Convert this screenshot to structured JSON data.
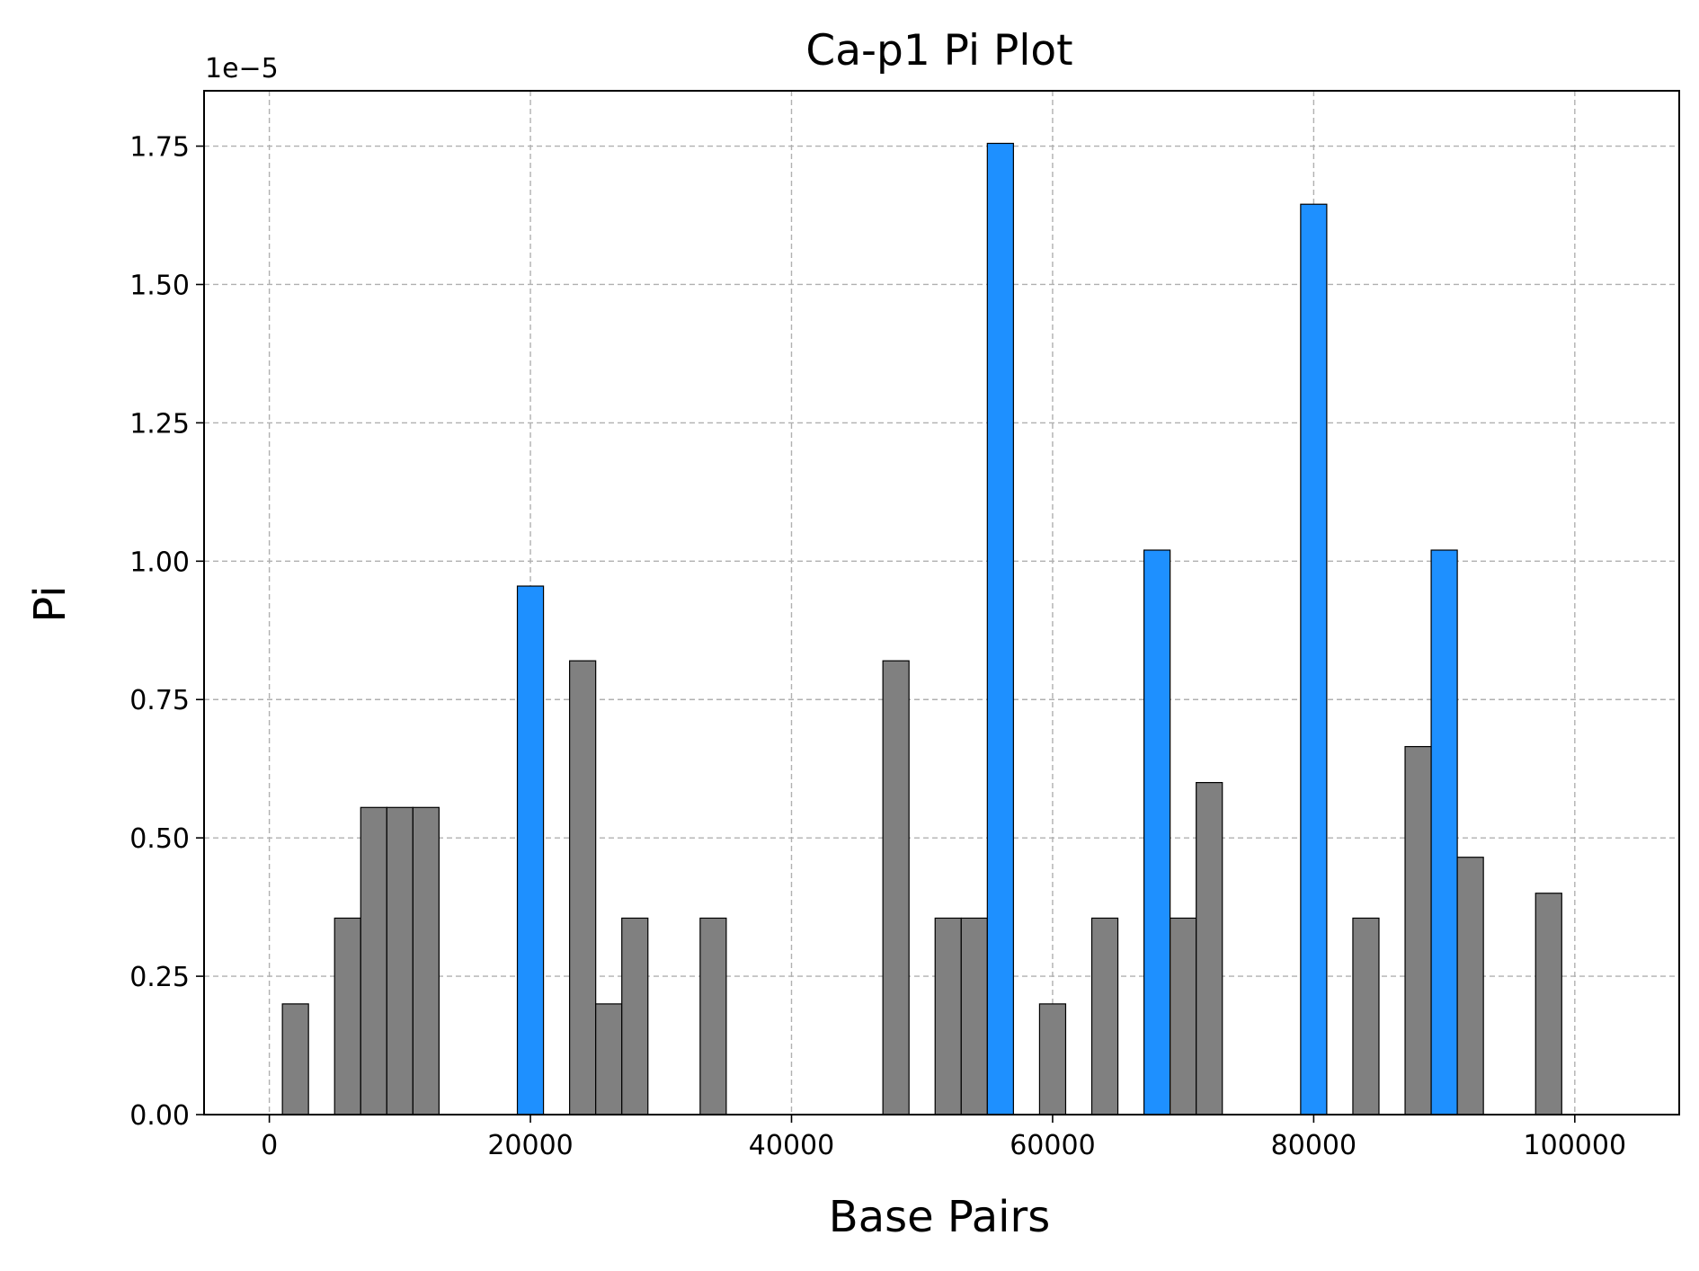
{
  "chart_data": {
    "type": "bar",
    "title": "Ca-p1 Pi Plot",
    "xlabel": "Base Pairs",
    "ylabel": "Pi",
    "offset_label": "1e−5",
    "xlim": [
      -5000,
      108000
    ],
    "ylim": [
      0,
      1.85
    ],
    "xticks": [
      0,
      20000,
      40000,
      60000,
      80000,
      100000
    ],
    "xtick_labels": [
      "0",
      "20000",
      "40000",
      "60000",
      "80000",
      "100000"
    ],
    "yticks": [
      0,
      0.25,
      0.5,
      0.75,
      1.0,
      1.25,
      1.5,
      1.75
    ],
    "ytick_labels": [
      "0.00",
      "0.25",
      "0.50",
      "0.75",
      "1.00",
      "1.25",
      "1.50",
      "1.75"
    ],
    "grid": true,
    "bin_width": 2000,
    "colors": {
      "normal": "#808080",
      "highlight": "#1e90ff"
    },
    "bars": [
      {
        "x": 2000,
        "value": 0.2,
        "highlight": false
      },
      {
        "x": 6000,
        "value": 0.355,
        "highlight": false
      },
      {
        "x": 8000,
        "value": 0.555,
        "highlight": false
      },
      {
        "x": 10000,
        "value": 0.555,
        "highlight": false
      },
      {
        "x": 12000,
        "value": 0.555,
        "highlight": false
      },
      {
        "x": 20000,
        "value": 0.955,
        "highlight": true
      },
      {
        "x": 24000,
        "value": 0.82,
        "highlight": false
      },
      {
        "x": 26000,
        "value": 0.2,
        "highlight": false
      },
      {
        "x": 28000,
        "value": 0.355,
        "highlight": false
      },
      {
        "x": 34000,
        "value": 0.355,
        "highlight": false
      },
      {
        "x": 48000,
        "value": 0.82,
        "highlight": false
      },
      {
        "x": 52000,
        "value": 0.355,
        "highlight": false
      },
      {
        "x": 54000,
        "value": 0.355,
        "highlight": false
      },
      {
        "x": 56000,
        "value": 1.755,
        "highlight": true
      },
      {
        "x": 60000,
        "value": 0.2,
        "highlight": false
      },
      {
        "x": 64000,
        "value": 0.355,
        "highlight": false
      },
      {
        "x": 68000,
        "value": 1.02,
        "highlight": true
      },
      {
        "x": 70000,
        "value": 0.355,
        "highlight": false
      },
      {
        "x": 72000,
        "value": 0.6,
        "highlight": false
      },
      {
        "x": 80000,
        "value": 1.645,
        "highlight": true
      },
      {
        "x": 84000,
        "value": 0.355,
        "highlight": false
      },
      {
        "x": 88000,
        "value": 0.665,
        "highlight": false
      },
      {
        "x": 90000,
        "value": 1.02,
        "highlight": true
      },
      {
        "x": 92000,
        "value": 0.465,
        "highlight": false
      },
      {
        "x": 98000,
        "value": 0.4,
        "highlight": false
      }
    ]
  }
}
